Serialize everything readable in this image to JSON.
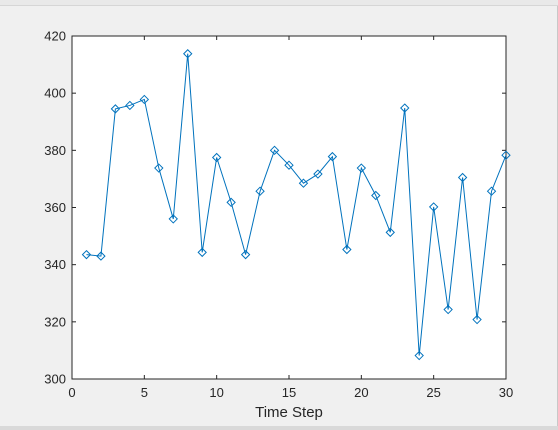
{
  "chart_data": {
    "type": "line",
    "title": "",
    "xlabel": "Time Step",
    "ylabel": "",
    "xlim": [
      0,
      30
    ],
    "ylim": [
      300,
      420
    ],
    "xticks": [
      0,
      5,
      10,
      15,
      20,
      25,
      30
    ],
    "yticks": [
      300,
      320,
      340,
      360,
      380,
      400,
      420
    ],
    "xtick_labels": [
      "0",
      "5",
      "10",
      "15",
      "20",
      "25",
      "30"
    ],
    "ytick_labels": [
      "300",
      "320",
      "340",
      "360",
      "380",
      "400",
      "420"
    ],
    "grid": false,
    "legend": "none",
    "series": [
      {
        "color": "#0072bd",
        "marker": "diamond",
        "x": [
          1,
          2,
          3,
          4,
          5,
          6,
          7,
          8,
          9,
          10,
          11,
          12,
          13,
          14,
          15,
          16,
          17,
          18,
          19,
          20,
          21,
          22,
          23,
          24,
          25,
          26,
          27,
          28,
          29,
          30
        ],
        "y": [
          343.5,
          343.0,
          394.5,
          395.7,
          397.8,
          373.8,
          356.0,
          413.8,
          344.3,
          377.5,
          361.8,
          343.5,
          365.7,
          380.0,
          374.8,
          368.5,
          371.7,
          377.8,
          345.3,
          373.8,
          364.2,
          351.3,
          394.8,
          308.2,
          360.2,
          324.3,
          370.5,
          320.8,
          365.7,
          378.3
        ]
      }
    ]
  }
}
